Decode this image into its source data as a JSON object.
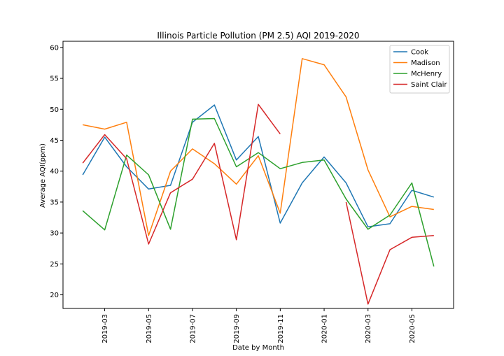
{
  "chart_data": {
    "type": "line",
    "title": "Illinois Particle Pollution (PM 2.5) AQI 2019-2020",
    "xlabel": "Date by Month",
    "ylabel": "Average AQI(ppm)",
    "x_dates": [
      "2019-02",
      "2019-03",
      "2019-04",
      "2019-05",
      "2019-06",
      "2019-07",
      "2019-08",
      "2019-09",
      "2019-10",
      "2019-11",
      "2019-12",
      "2020-01",
      "2020-02",
      "2020-03",
      "2020-04",
      "2020-05",
      "2020-06"
    ],
    "x_ticks": [
      "2019-03",
      "2019-05",
      "2019-07",
      "2019-09",
      "2019-11",
      "2020-01",
      "2020-03",
      "2020-05"
    ],
    "ylim": [
      17.8,
      61.0
    ],
    "y_ticks": [
      20,
      25,
      30,
      35,
      40,
      45,
      50,
      55,
      60
    ],
    "grid": false,
    "legend_position": "top-right",
    "series": [
      {
        "name": "Cook",
        "color": "#1f77b4",
        "values": [
          39.4,
          45.5,
          40.7,
          37.1,
          37.7,
          47.9,
          50.7,
          41.8,
          45.6,
          31.6,
          38.1,
          42.3,
          38.1,
          31.0,
          31.5,
          36.9,
          35.8
        ]
      },
      {
        "name": "Madison",
        "color": "#ff7f0e",
        "values": [
          47.5,
          46.8,
          47.9,
          29.6,
          40.0,
          43.6,
          41.2,
          37.9,
          42.5,
          33.2,
          58.2,
          57.2,
          52.0,
          40.2,
          32.6,
          34.3,
          33.8
        ]
      },
      {
        "name": "McHenry",
        "color": "#2ca02c",
        "values": [
          33.6,
          30.5,
          42.6,
          39.4,
          30.6,
          48.4,
          48.5,
          40.7,
          43.0,
          40.4,
          41.4,
          41.8,
          35.5,
          30.6,
          32.9,
          38.1,
          24.6
        ]
      },
      {
        "name": "Saint Clair",
        "color": "#d62728",
        "values": [
          41.3,
          45.9,
          42.0,
          28.2,
          36.5,
          38.7,
          44.5,
          28.9,
          50.8,
          46.0,
          null,
          null,
          35.0,
          18.5,
          27.3,
          29.3,
          29.6
        ]
      }
    ]
  }
}
